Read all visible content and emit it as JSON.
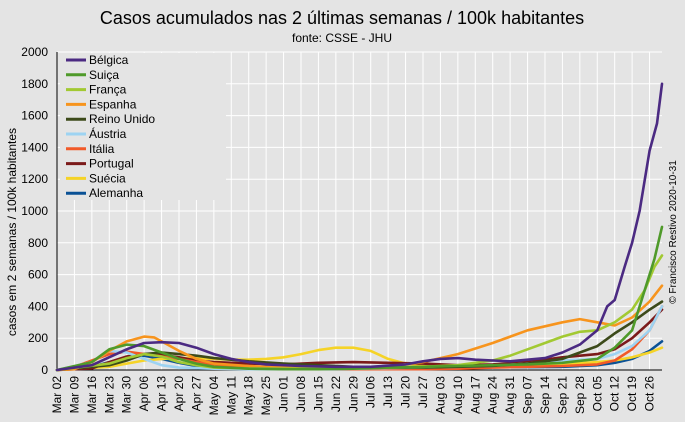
{
  "chart_data": {
    "type": "line",
    "title": "Casos acumulados nas 2 últimas semanas / 100k habitantes",
    "subtitle": "fonte: CSSE - JHU",
    "ylabel": "casos em 2 semanas / 100k habitantes",
    "xlabel": "",
    "credit": "© Francisco Restivo 2020-10-31",
    "ylim": [
      0,
      2000
    ],
    "y_ticks": [
      0,
      200,
      400,
      600,
      800,
      1000,
      1200,
      1400,
      1600,
      1800,
      2000
    ],
    "grid": true,
    "legend_position": "top-left",
    "x_start": "2020-03-02",
    "x_end": "2020-10-31",
    "x_tick_labels": [
      "Mar 02",
      "Mar 09",
      "Mar 16",
      "Mar 23",
      "Mar 30",
      "Apr 06",
      "Apr 13",
      "Apr 20",
      "Apr 27",
      "May 04",
      "May 11",
      "May 18",
      "May 25",
      "Jun 01",
      "Jun 08",
      "Jun 15",
      "Jun 22",
      "Jun 29",
      "Jul 06",
      "Jul 13",
      "Jul 20",
      "Jul 27",
      "Aug 03",
      "Aug 10",
      "Aug 17",
      "Aug 24",
      "Aug 31",
      "Sep 07",
      "Sep 14",
      "Sep 21",
      "Sep 28",
      "Oct 05",
      "Oct 12",
      "Oct 19",
      "Oct 26"
    ],
    "series": [
      {
        "name": "Bélgica",
        "color": "#4b2a82",
        "points": [
          [
            "2020-03-02",
            0
          ],
          [
            "2020-03-16",
            30
          ],
          [
            "2020-03-30",
            130
          ],
          [
            "2020-04-06",
            170
          ],
          [
            "2020-04-13",
            175
          ],
          [
            "2020-04-20",
            170
          ],
          [
            "2020-04-27",
            140
          ],
          [
            "2020-05-04",
            100
          ],
          [
            "2020-05-11",
            70
          ],
          [
            "2020-05-18",
            50
          ],
          [
            "2020-05-25",
            35
          ],
          [
            "2020-06-08",
            25
          ],
          [
            "2020-06-22",
            20
          ],
          [
            "2020-07-06",
            20
          ],
          [
            "2020-07-20",
            35
          ],
          [
            "2020-07-27",
            55
          ],
          [
            "2020-08-03",
            70
          ],
          [
            "2020-08-10",
            75
          ],
          [
            "2020-08-17",
            65
          ],
          [
            "2020-08-31",
            55
          ],
          [
            "2020-09-14",
            75
          ],
          [
            "2020-09-21",
            110
          ],
          [
            "2020-09-28",
            160
          ],
          [
            "2020-10-05",
            250
          ],
          [
            "2020-10-09",
            400
          ],
          [
            "2020-10-12",
            440
          ],
          [
            "2020-10-16",
            650
          ],
          [
            "2020-10-19",
            800
          ],
          [
            "2020-10-22",
            1000
          ],
          [
            "2020-10-26",
            1380
          ],
          [
            "2020-10-29",
            1550
          ],
          [
            "2020-10-31",
            1800
          ]
        ]
      },
      {
        "name": "Suiça",
        "color": "#4f9a2a",
        "points": [
          [
            "2020-03-02",
            0
          ],
          [
            "2020-03-16",
            50
          ],
          [
            "2020-03-23",
            130
          ],
          [
            "2020-03-30",
            160
          ],
          [
            "2020-04-06",
            150
          ],
          [
            "2020-04-13",
            110
          ],
          [
            "2020-04-20",
            70
          ],
          [
            "2020-04-27",
            40
          ],
          [
            "2020-05-04",
            20
          ],
          [
            "2020-05-18",
            8
          ],
          [
            "2020-06-01",
            5
          ],
          [
            "2020-06-15",
            5
          ],
          [
            "2020-06-29",
            8
          ],
          [
            "2020-07-13",
            15
          ],
          [
            "2020-07-27",
            20
          ],
          [
            "2020-08-10",
            25
          ],
          [
            "2020-08-24",
            30
          ],
          [
            "2020-09-07",
            35
          ],
          [
            "2020-09-21",
            45
          ],
          [
            "2020-10-05",
            70
          ],
          [
            "2020-10-12",
            140
          ],
          [
            "2020-10-19",
            250
          ],
          [
            "2020-10-24",
            500
          ],
          [
            "2020-10-28",
            700
          ],
          [
            "2020-10-31",
            900
          ]
        ]
      },
      {
        "name": "França",
        "color": "#a2c932",
        "points": [
          [
            "2020-03-02",
            0
          ],
          [
            "2020-03-23",
            40
          ],
          [
            "2020-03-30",
            75
          ],
          [
            "2020-04-06",
            100
          ],
          [
            "2020-04-13",
            85
          ],
          [
            "2020-04-20",
            50
          ],
          [
            "2020-04-27",
            30
          ],
          [
            "2020-05-04",
            15
          ],
          [
            "2020-05-18",
            10
          ],
          [
            "2020-06-01",
            8
          ],
          [
            "2020-06-15",
            10
          ],
          [
            "2020-06-29",
            12
          ],
          [
            "2020-07-13",
            15
          ],
          [
            "2020-07-27",
            20
          ],
          [
            "2020-08-10",
            30
          ],
          [
            "2020-08-17",
            45
          ],
          [
            "2020-08-24",
            60
          ],
          [
            "2020-08-31",
            90
          ],
          [
            "2020-09-07",
            130
          ],
          [
            "2020-09-14",
            170
          ],
          [
            "2020-09-21",
            210
          ],
          [
            "2020-09-28",
            240
          ],
          [
            "2020-10-05",
            250
          ],
          [
            "2020-10-12",
            300
          ],
          [
            "2020-10-19",
            380
          ],
          [
            "2020-10-24",
            500
          ],
          [
            "2020-10-28",
            650
          ],
          [
            "2020-10-31",
            720
          ]
        ]
      },
      {
        "name": "Espanha",
        "color": "#f7941d",
        "points": [
          [
            "2020-03-02",
            0
          ],
          [
            "2020-03-09",
            5
          ],
          [
            "2020-03-16",
            50
          ],
          [
            "2020-03-23",
            120
          ],
          [
            "2020-03-30",
            180
          ],
          [
            "2020-04-06",
            210
          ],
          [
            "2020-04-10",
            205
          ],
          [
            "2020-04-13",
            180
          ],
          [
            "2020-04-20",
            120
          ],
          [
            "2020-04-27",
            70
          ],
          [
            "2020-05-04",
            40
          ],
          [
            "2020-05-18",
            25
          ],
          [
            "2020-06-01",
            15
          ],
          [
            "2020-06-15",
            10
          ],
          [
            "2020-06-29",
            10
          ],
          [
            "2020-07-13",
            20
          ],
          [
            "2020-07-27",
            50
          ],
          [
            "2020-08-10",
            100
          ],
          [
            "2020-08-24",
            170
          ],
          [
            "2020-09-07",
            250
          ],
          [
            "2020-09-21",
            300
          ],
          [
            "2020-09-28",
            320
          ],
          [
            "2020-10-05",
            300
          ],
          [
            "2020-10-12",
            280
          ],
          [
            "2020-10-19",
            330
          ],
          [
            "2020-10-26",
            430
          ],
          [
            "2020-10-31",
            530
          ]
        ]
      },
      {
        "name": "Reino Unido",
        "color": "#3c4a1a",
        "points": [
          [
            "2020-03-02",
            0
          ],
          [
            "2020-03-23",
            30
          ],
          [
            "2020-03-30",
            60
          ],
          [
            "2020-04-06",
            100
          ],
          [
            "2020-04-13",
            110
          ],
          [
            "2020-04-20",
            100
          ],
          [
            "2020-04-27",
            90
          ],
          [
            "2020-05-04",
            75
          ],
          [
            "2020-05-18",
            55
          ],
          [
            "2020-06-01",
            40
          ],
          [
            "2020-06-15",
            30
          ],
          [
            "2020-06-29",
            20
          ],
          [
            "2020-07-13",
            15
          ],
          [
            "2020-07-27",
            15
          ],
          [
            "2020-08-10",
            20
          ],
          [
            "2020-08-24",
            25
          ],
          [
            "2020-09-07",
            40
          ],
          [
            "2020-09-21",
            70
          ],
          [
            "2020-10-05",
            150
          ],
          [
            "2020-10-12",
            230
          ],
          [
            "2020-10-19",
            300
          ],
          [
            "2020-10-26",
            380
          ],
          [
            "2020-10-31",
            430
          ]
        ]
      },
      {
        "name": "Áustria",
        "color": "#9dd3f2",
        "points": [
          [
            "2020-03-02",
            0
          ],
          [
            "2020-03-16",
            50
          ],
          [
            "2020-03-23",
            120
          ],
          [
            "2020-03-30",
            110
          ],
          [
            "2020-04-06",
            70
          ],
          [
            "2020-04-13",
            30
          ],
          [
            "2020-04-20",
            15
          ],
          [
            "2020-05-04",
            8
          ],
          [
            "2020-05-18",
            5
          ],
          [
            "2020-06-01",
            5
          ],
          [
            "2020-06-15",
            5
          ],
          [
            "2020-06-29",
            8
          ],
          [
            "2020-07-13",
            12
          ],
          [
            "2020-07-27",
            15
          ],
          [
            "2020-08-10",
            20
          ],
          [
            "2020-08-24",
            25
          ],
          [
            "2020-09-07",
            40
          ],
          [
            "2020-09-21",
            60
          ],
          [
            "2020-10-05",
            70
          ],
          [
            "2020-10-12",
            100
          ],
          [
            "2020-10-19",
            150
          ],
          [
            "2020-10-26",
            250
          ],
          [
            "2020-10-31",
            400
          ]
        ]
      },
      {
        "name": "Itália",
        "color": "#f15a29",
        "points": [
          [
            "2020-03-02",
            0
          ],
          [
            "2020-03-09",
            20
          ],
          [
            "2020-03-16",
            60
          ],
          [
            "2020-03-23",
            100
          ],
          [
            "2020-03-30",
            115
          ],
          [
            "2020-04-06",
            100
          ],
          [
            "2020-04-13",
            85
          ],
          [
            "2020-04-20",
            70
          ],
          [
            "2020-04-27",
            50
          ],
          [
            "2020-05-04",
            35
          ],
          [
            "2020-05-18",
            20
          ],
          [
            "2020-06-01",
            10
          ],
          [
            "2020-06-15",
            8
          ],
          [
            "2020-06-29",
            5
          ],
          [
            "2020-07-13",
            5
          ],
          [
            "2020-07-27",
            5
          ],
          [
            "2020-08-10",
            8
          ],
          [
            "2020-08-24",
            15
          ],
          [
            "2020-09-07",
            20
          ],
          [
            "2020-09-21",
            25
          ],
          [
            "2020-10-05",
            35
          ],
          [
            "2020-10-12",
            60
          ],
          [
            "2020-10-19",
            130
          ],
          [
            "2020-10-26",
            250
          ],
          [
            "2020-10-31",
            400
          ]
        ]
      },
      {
        "name": "Portugal",
        "color": "#7b1a1a",
        "points": [
          [
            "2020-03-02",
            0
          ],
          [
            "2020-03-16",
            10
          ],
          [
            "2020-03-23",
            50
          ],
          [
            "2020-03-30",
            85
          ],
          [
            "2020-04-06",
            100
          ],
          [
            "2020-04-13",
            95
          ],
          [
            "2020-04-20",
            80
          ],
          [
            "2020-04-27",
            60
          ],
          [
            "2020-05-04",
            50
          ],
          [
            "2020-05-18",
            40
          ],
          [
            "2020-06-01",
            35
          ],
          [
            "2020-06-15",
            45
          ],
          [
            "2020-06-29",
            50
          ],
          [
            "2020-07-13",
            45
          ],
          [
            "2020-07-27",
            40
          ],
          [
            "2020-08-10",
            30
          ],
          [
            "2020-08-24",
            35
          ],
          [
            "2020-09-07",
            50
          ],
          [
            "2020-09-21",
            80
          ],
          [
            "2020-10-05",
            100
          ],
          [
            "2020-10-12",
            130
          ],
          [
            "2020-10-19",
            200
          ],
          [
            "2020-10-26",
            300
          ],
          [
            "2020-10-31",
            380
          ]
        ]
      },
      {
        "name": "Suécia",
        "color": "#f5d327",
        "points": [
          [
            "2020-03-02",
            0
          ],
          [
            "2020-03-23",
            20
          ],
          [
            "2020-03-30",
            40
          ],
          [
            "2020-04-06",
            60
          ],
          [
            "2020-04-13",
            70
          ],
          [
            "2020-04-20",
            75
          ],
          [
            "2020-04-27",
            75
          ],
          [
            "2020-05-04",
            70
          ],
          [
            "2020-05-11",
            65
          ],
          [
            "2020-05-18",
            65
          ],
          [
            "2020-05-25",
            70
          ],
          [
            "2020-06-01",
            80
          ],
          [
            "2020-06-08",
            100
          ],
          [
            "2020-06-15",
            125
          ],
          [
            "2020-06-22",
            140
          ],
          [
            "2020-06-29",
            140
          ],
          [
            "2020-07-06",
            120
          ],
          [
            "2020-07-13",
            70
          ],
          [
            "2020-07-20",
            40
          ],
          [
            "2020-07-27",
            30
          ],
          [
            "2020-08-10",
            25
          ],
          [
            "2020-08-24",
            25
          ],
          [
            "2020-09-07",
            25
          ],
          [
            "2020-09-21",
            35
          ],
          [
            "2020-10-05",
            50
          ],
          [
            "2020-10-12",
            60
          ],
          [
            "2020-10-19",
            80
          ],
          [
            "2020-10-26",
            110
          ],
          [
            "2020-10-31",
            140
          ]
        ]
      },
      {
        "name": "Alemanha",
        "color": "#0a5195",
        "points": [
          [
            "2020-03-02",
            0
          ],
          [
            "2020-03-16",
            20
          ],
          [
            "2020-03-23",
            50
          ],
          [
            "2020-03-30",
            80
          ],
          [
            "2020-04-06",
            90
          ],
          [
            "2020-04-13",
            70
          ],
          [
            "2020-04-20",
            45
          ],
          [
            "2020-04-27",
            25
          ],
          [
            "2020-05-04",
            12
          ],
          [
            "2020-05-18",
            8
          ],
          [
            "2020-06-01",
            5
          ],
          [
            "2020-06-15",
            5
          ],
          [
            "2020-06-29",
            8
          ],
          [
            "2020-07-13",
            8
          ],
          [
            "2020-07-27",
            10
          ],
          [
            "2020-08-10",
            15
          ],
          [
            "2020-08-24",
            18
          ],
          [
            "2020-09-07",
            18
          ],
          [
            "2020-09-21",
            20
          ],
          [
            "2020-10-05",
            30
          ],
          [
            "2020-10-12",
            45
          ],
          [
            "2020-10-19",
            70
          ],
          [
            "2020-10-26",
            120
          ],
          [
            "2020-10-31",
            180
          ]
        ]
      }
    ]
  }
}
